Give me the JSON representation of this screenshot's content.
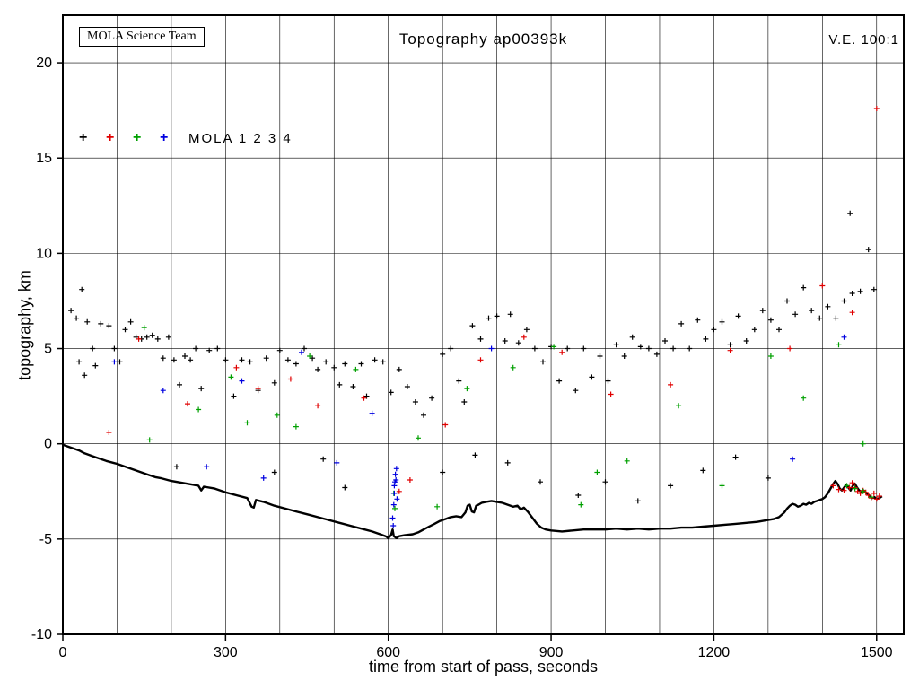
{
  "header": {
    "title": "Topography ap00393k",
    "ve_label": "V.E. 100:1",
    "team_label": "MOLA Science Team"
  },
  "legend": {
    "label": "MOLA 1 2 3 4",
    "marker_glyph": "+",
    "colors": [
      "#000000",
      "#e00000",
      "#00a000",
      "#0000e0"
    ]
  },
  "chart_data": {
    "type": "scatter",
    "title": "Topography ap00393k",
    "xlabel": "time from start of pass, seconds",
    "ylabel": "topography, km",
    "xlim": [
      0,
      1550
    ],
    "ylim": [
      -10,
      22.5
    ],
    "x_ticks": [
      0,
      300,
      600,
      900,
      1200,
      1500
    ],
    "y_ticks": [
      -10,
      -5,
      0,
      5,
      10,
      15,
      20
    ],
    "x_grid_step": 100,
    "y_grid_step": 5,
    "grid": true,
    "legend_entries": [
      "MOLA 1",
      "MOLA 2",
      "MOLA 3",
      "MOLA 4"
    ],
    "series_colors": {
      "black": "#000000",
      "red": "#e00000",
      "green": "#00a000",
      "blue": "#0000e0"
    },
    "profile": [
      [
        0,
        -0.05
      ],
      [
        10,
        -0.15
      ],
      [
        20,
        -0.25
      ],
      [
        30,
        -0.35
      ],
      [
        40,
        -0.5
      ],
      [
        60,
        -0.7
      ],
      [
        80,
        -0.9
      ],
      [
        100,
        -1.05
      ],
      [
        120,
        -1.25
      ],
      [
        140,
        -1.45
      ],
      [
        160,
        -1.65
      ],
      [
        170,
        -1.75
      ],
      [
        180,
        -1.8
      ],
      [
        200,
        -1.95
      ],
      [
        220,
        -2.05
      ],
      [
        240,
        -2.15
      ],
      [
        250,
        -2.2
      ],
      [
        255,
        -2.45
      ],
      [
        260,
        -2.25
      ],
      [
        280,
        -2.35
      ],
      [
        300,
        -2.55
      ],
      [
        320,
        -2.7
      ],
      [
        340,
        -2.85
      ],
      [
        348,
        -3.3
      ],
      [
        352,
        -3.35
      ],
      [
        356,
        -2.95
      ],
      [
        370,
        -3.05
      ],
      [
        390,
        -3.25
      ],
      [
        410,
        -3.4
      ],
      [
        430,
        -3.55
      ],
      [
        450,
        -3.7
      ],
      [
        470,
        -3.85
      ],
      [
        490,
        -4.0
      ],
      [
        510,
        -4.15
      ],
      [
        530,
        -4.3
      ],
      [
        550,
        -4.45
      ],
      [
        570,
        -4.6
      ],
      [
        585,
        -4.75
      ],
      [
        595,
        -4.85
      ],
      [
        600,
        -4.95
      ],
      [
        605,
        -4.8
      ],
      [
        608,
        -4.5
      ],
      [
        610,
        -4.85
      ],
      [
        615,
        -4.95
      ],
      [
        620,
        -4.85
      ],
      [
        630,
        -4.8
      ],
      [
        645,
        -4.75
      ],
      [
        655,
        -4.65
      ],
      [
        665,
        -4.5
      ],
      [
        675,
        -4.35
      ],
      [
        685,
        -4.2
      ],
      [
        695,
        -4.05
      ],
      [
        705,
        -3.95
      ],
      [
        715,
        -3.85
      ],
      [
        725,
        -3.8
      ],
      [
        735,
        -3.85
      ],
      [
        742,
        -3.6
      ],
      [
        746,
        -3.25
      ],
      [
        750,
        -3.2
      ],
      [
        754,
        -3.55
      ],
      [
        758,
        -3.6
      ],
      [
        762,
        -3.25
      ],
      [
        766,
        -3.2
      ],
      [
        772,
        -3.1
      ],
      [
        780,
        -3.05
      ],
      [
        790,
        -3.0
      ],
      [
        800,
        -3.05
      ],
      [
        810,
        -3.1
      ],
      [
        820,
        -3.2
      ],
      [
        830,
        -3.3
      ],
      [
        838,
        -3.25
      ],
      [
        844,
        -3.45
      ],
      [
        850,
        -3.35
      ],
      [
        858,
        -3.6
      ],
      [
        866,
        -3.9
      ],
      [
        874,
        -4.2
      ],
      [
        882,
        -4.4
      ],
      [
        890,
        -4.5
      ],
      [
        900,
        -4.55
      ],
      [
        920,
        -4.6
      ],
      [
        940,
        -4.55
      ],
      [
        960,
        -4.5
      ],
      [
        980,
        -4.5
      ],
      [
        1000,
        -4.5
      ],
      [
        1020,
        -4.45
      ],
      [
        1040,
        -4.5
      ],
      [
        1060,
        -4.45
      ],
      [
        1080,
        -4.5
      ],
      [
        1100,
        -4.45
      ],
      [
        1120,
        -4.45
      ],
      [
        1140,
        -4.4
      ],
      [
        1160,
        -4.4
      ],
      [
        1180,
        -4.35
      ],
      [
        1200,
        -4.3
      ],
      [
        1220,
        -4.25
      ],
      [
        1240,
        -4.2
      ],
      [
        1260,
        -4.15
      ],
      [
        1280,
        -4.1
      ],
      [
        1300,
        -4.0
      ],
      [
        1310,
        -3.95
      ],
      [
        1320,
        -3.85
      ],
      [
        1330,
        -3.6
      ],
      [
        1335,
        -3.4
      ],
      [
        1340,
        -3.25
      ],
      [
        1345,
        -3.15
      ],
      [
        1350,
        -3.2
      ],
      [
        1355,
        -3.3
      ],
      [
        1360,
        -3.25
      ],
      [
        1365,
        -3.15
      ],
      [
        1370,
        -3.2
      ],
      [
        1375,
        -3.1
      ],
      [
        1380,
        -3.15
      ],
      [
        1385,
        -3.05
      ],
      [
        1390,
        -3.0
      ],
      [
        1395,
        -2.95
      ],
      [
        1400,
        -2.9
      ],
      [
        1405,
        -2.8
      ],
      [
        1410,
        -2.6
      ],
      [
        1415,
        -2.35
      ],
      [
        1420,
        -2.1
      ],
      [
        1424,
        -1.95
      ],
      [
        1428,
        -2.1
      ],
      [
        1432,
        -2.35
      ],
      [
        1436,
        -2.45
      ],
      [
        1440,
        -2.3
      ],
      [
        1444,
        -2.15
      ],
      [
        1448,
        -2.3
      ],
      [
        1452,
        -2.45
      ],
      [
        1456,
        -2.2
      ],
      [
        1460,
        -2.1
      ],
      [
        1464,
        -2.3
      ],
      [
        1468,
        -2.45
      ],
      [
        1472,
        -2.55
      ],
      [
        1476,
        -2.45
      ],
      [
        1480,
        -2.55
      ],
      [
        1484,
        -2.65
      ],
      [
        1488,
        -2.75
      ],
      [
        1492,
        -2.85
      ],
      [
        1496,
        -2.8
      ],
      [
        1500,
        -2.9
      ],
      [
        1505,
        -2.85
      ],
      [
        1510,
        -2.75
      ]
    ],
    "scatter": {
      "black": [
        [
          15,
          7.0
        ],
        [
          25,
          6.6
        ],
        [
          30,
          4.3
        ],
        [
          35,
          8.1
        ],
        [
          40,
          3.6
        ],
        [
          45,
          6.4
        ],
        [
          55,
          5.0
        ],
        [
          60,
          4.1
        ],
        [
          70,
          6.3
        ],
        [
          85,
          6.2
        ],
        [
          95,
          5.0
        ],
        [
          105,
          4.3
        ],
        [
          115,
          6.0
        ],
        [
          125,
          6.4
        ],
        [
          135,
          5.6
        ],
        [
          145,
          5.5
        ],
        [
          155,
          5.6
        ],
        [
          165,
          5.7
        ],
        [
          175,
          5.5
        ],
        [
          185,
          4.5
        ],
        [
          195,
          5.6
        ],
        [
          205,
          4.4
        ],
        [
          210,
          -1.2
        ],
        [
          215,
          3.1
        ],
        [
          225,
          4.6
        ],
        [
          235,
          4.4
        ],
        [
          245,
          5.0
        ],
        [
          255,
          2.9
        ],
        [
          270,
          4.9
        ],
        [
          285,
          5.0
        ],
        [
          300,
          4.4
        ],
        [
          315,
          2.5
        ],
        [
          330,
          4.4
        ],
        [
          345,
          4.3
        ],
        [
          360,
          2.8
        ],
        [
          375,
          4.5
        ],
        [
          390,
          -1.5
        ],
        [
          390,
          3.2
        ],
        [
          400,
          4.9
        ],
        [
          415,
          4.4
        ],
        [
          430,
          4.2
        ],
        [
          445,
          5.0
        ],
        [
          460,
          4.5
        ],
        [
          470,
          3.9
        ],
        [
          480,
          -0.8
        ],
        [
          485,
          4.3
        ],
        [
          500,
          4.0
        ],
        [
          510,
          3.1
        ],
        [
          520,
          -2.3
        ],
        [
          520,
          4.2
        ],
        [
          535,
          3.0
        ],
        [
          550,
          4.2
        ],
        [
          560,
          2.5
        ],
        [
          575,
          4.4
        ],
        [
          590,
          4.3
        ],
        [
          605,
          2.7
        ],
        [
          620,
          3.9
        ],
        [
          635,
          3.0
        ],
        [
          650,
          2.2
        ],
        [
          665,
          1.5
        ],
        [
          680,
          2.4
        ],
        [
          700,
          -1.5
        ],
        [
          700,
          4.7
        ],
        [
          715,
          5.0
        ],
        [
          730,
          3.3
        ],
        [
          740,
          2.2
        ],
        [
          755,
          6.2
        ],
        [
          760,
          -0.6
        ],
        [
          770,
          5.5
        ],
        [
          785,
          6.6
        ],
        [
          800,
          6.7
        ],
        [
          815,
          5.4
        ],
        [
          820,
          -1.0
        ],
        [
          825,
          6.8
        ],
        [
          840,
          5.3
        ],
        [
          855,
          6.0
        ],
        [
          870,
          5.0
        ],
        [
          880,
          -2.0
        ],
        [
          885,
          4.3
        ],
        [
          900,
          5.1
        ],
        [
          915,
          3.3
        ],
        [
          930,
          5.0
        ],
        [
          945,
          2.8
        ],
        [
          950,
          -2.7
        ],
        [
          960,
          5.0
        ],
        [
          975,
          3.5
        ],
        [
          990,
          4.6
        ],
        [
          1000,
          -2.0
        ],
        [
          1005,
          3.3
        ],
        [
          1020,
          5.2
        ],
        [
          1035,
          4.6
        ],
        [
          1050,
          5.6
        ],
        [
          1060,
          -3.0
        ],
        [
          1065,
          5.1
        ],
        [
          1080,
          5.0
        ],
        [
          1095,
          4.7
        ],
        [
          1110,
          5.4
        ],
        [
          1120,
          -2.2
        ],
        [
          1125,
          5.0
        ],
        [
          1140,
          6.3
        ],
        [
          1155,
          5.0
        ],
        [
          1170,
          6.5
        ],
        [
          1180,
          -1.4
        ],
        [
          1185,
          5.5
        ],
        [
          1200,
          6.0
        ],
        [
          1215,
          6.4
        ],
        [
          1230,
          5.2
        ],
        [
          1240,
          -0.7
        ],
        [
          1245,
          6.7
        ],
        [
          1260,
          5.4
        ],
        [
          1275,
          6.0
        ],
        [
          1290,
          7.0
        ],
        [
          1300,
          -1.8
        ],
        [
          1305,
          6.5
        ],
        [
          1320,
          6.0
        ],
        [
          1335,
          7.5
        ],
        [
          1350,
          6.8
        ],
        [
          1365,
          8.2
        ],
        [
          1380,
          7.0
        ],
        [
          1395,
          6.6
        ],
        [
          1410,
          7.2
        ],
        [
          1425,
          6.6
        ],
        [
          1440,
          7.5
        ],
        [
          1451,
          12.1
        ],
        [
          1455,
          7.9
        ],
        [
          1470,
          8.0
        ],
        [
          1485,
          10.2
        ],
        [
          1495,
          8.1
        ]
      ],
      "red": [
        [
          85,
          0.6
        ],
        [
          140,
          5.5
        ],
        [
          230,
          2.1
        ],
        [
          320,
          4.0
        ],
        [
          360,
          2.9
        ],
        [
          420,
          3.4
        ],
        [
          470,
          2.0
        ],
        [
          555,
          2.4
        ],
        [
          620,
          -2.5
        ],
        [
          640,
          -1.9
        ],
        [
          705,
          1.0
        ],
        [
          770,
          4.4
        ],
        [
          850,
          5.6
        ],
        [
          920,
          4.8
        ],
        [
          1010,
          2.6
        ],
        [
          1120,
          3.1
        ],
        [
          1230,
          4.9
        ],
        [
          1340,
          5.0
        ],
        [
          1400,
          8.3
        ],
        [
          1420,
          -2.2
        ],
        [
          1430,
          -2.4
        ],
        [
          1440,
          -2.45
        ],
        [
          1450,
          -2.3
        ],
        [
          1455,
          -2.05
        ],
        [
          1455,
          6.9
        ],
        [
          1460,
          -2.3
        ],
        [
          1465,
          -2.5
        ],
        [
          1470,
          -2.6
        ],
        [
          1475,
          -2.45
        ],
        [
          1480,
          -2.55
        ],
        [
          1485,
          -2.7
        ],
        [
          1490,
          -2.85
        ],
        [
          1495,
          -2.6
        ],
        [
          1500,
          -2.9
        ],
        [
          1500,
          17.6
        ],
        [
          1505,
          -2.75
        ]
      ],
      "green": [
        [
          150,
          6.1
        ],
        [
          160,
          0.2
        ],
        [
          250,
          1.8
        ],
        [
          310,
          3.5
        ],
        [
          340,
          1.1
        ],
        [
          395,
          1.5
        ],
        [
          430,
          0.9
        ],
        [
          455,
          4.6
        ],
        [
          540,
          3.9
        ],
        [
          610,
          -2.6
        ],
        [
          612,
          -3.4
        ],
        [
          655,
          0.3
        ],
        [
          690,
          -3.3
        ],
        [
          745,
          2.9
        ],
        [
          830,
          4.0
        ],
        [
          905,
          5.1
        ],
        [
          955,
          -3.2
        ],
        [
          985,
          -1.5
        ],
        [
          1040,
          -0.9
        ],
        [
          1135,
          2.0
        ],
        [
          1215,
          -2.2
        ],
        [
          1305,
          4.6
        ],
        [
          1365,
          2.4
        ],
        [
          1430,
          5.2
        ],
        [
          1445,
          -2.2
        ],
        [
          1460,
          -2.35
        ],
        [
          1475,
          0.0
        ],
        [
          1475,
          -2.5
        ],
        [
          1490,
          -2.8
        ]
      ],
      "blue": [
        [
          95,
          4.3
        ],
        [
          185,
          2.8
        ],
        [
          265,
          -1.2
        ],
        [
          330,
          3.3
        ],
        [
          370,
          -1.8
        ],
        [
          440,
          4.8
        ],
        [
          505,
          -1.0
        ],
        [
          570,
          1.6
        ],
        [
          608,
          -3.9
        ],
        [
          609,
          -4.3
        ],
        [
          610,
          -3.2
        ],
        [
          611,
          -2.6
        ],
        [
          611,
          -2.2
        ],
        [
          612,
          -2.0
        ],
        [
          613,
          -1.6
        ],
        [
          614,
          -1.9
        ],
        [
          615,
          -1.3
        ],
        [
          616,
          -2.9
        ],
        [
          790,
          5.0
        ],
        [
          1345,
          -0.8
        ],
        [
          1440,
          5.6
        ]
      ]
    }
  }
}
